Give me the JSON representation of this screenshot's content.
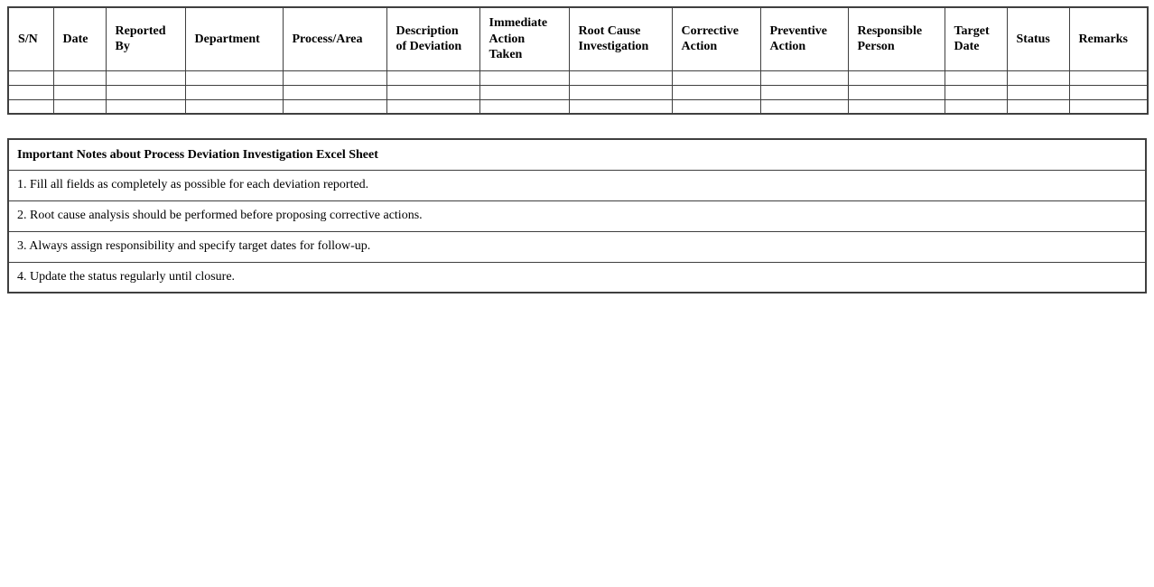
{
  "colors": {
    "background": "#ffffff",
    "border": "#3f3f3f",
    "text": "#000000"
  },
  "deviation_table": {
    "columns": [
      "S/N",
      "Date",
      "Reported By",
      "Department",
      "Process/Area",
      "Description of Deviation",
      "Immediate Action Taken",
      "Root Cause Investigation",
      "Corrective Action",
      "Preventive Action",
      "Responsible Person",
      "Target Date",
      "Status",
      "Remarks"
    ],
    "empty_row_count": 3,
    "empty_cell_value": ""
  },
  "notes": {
    "title": "Important Notes about Process Deviation Investigation Excel Sheet",
    "items": [
      "1. Fill all fields as completely as possible for each deviation reported.",
      "2. Root cause analysis should be performed before proposing corrective actions.",
      "3. Always assign responsibility and specify target dates for follow-up.",
      "4. Update the status regularly until closure."
    ]
  }
}
